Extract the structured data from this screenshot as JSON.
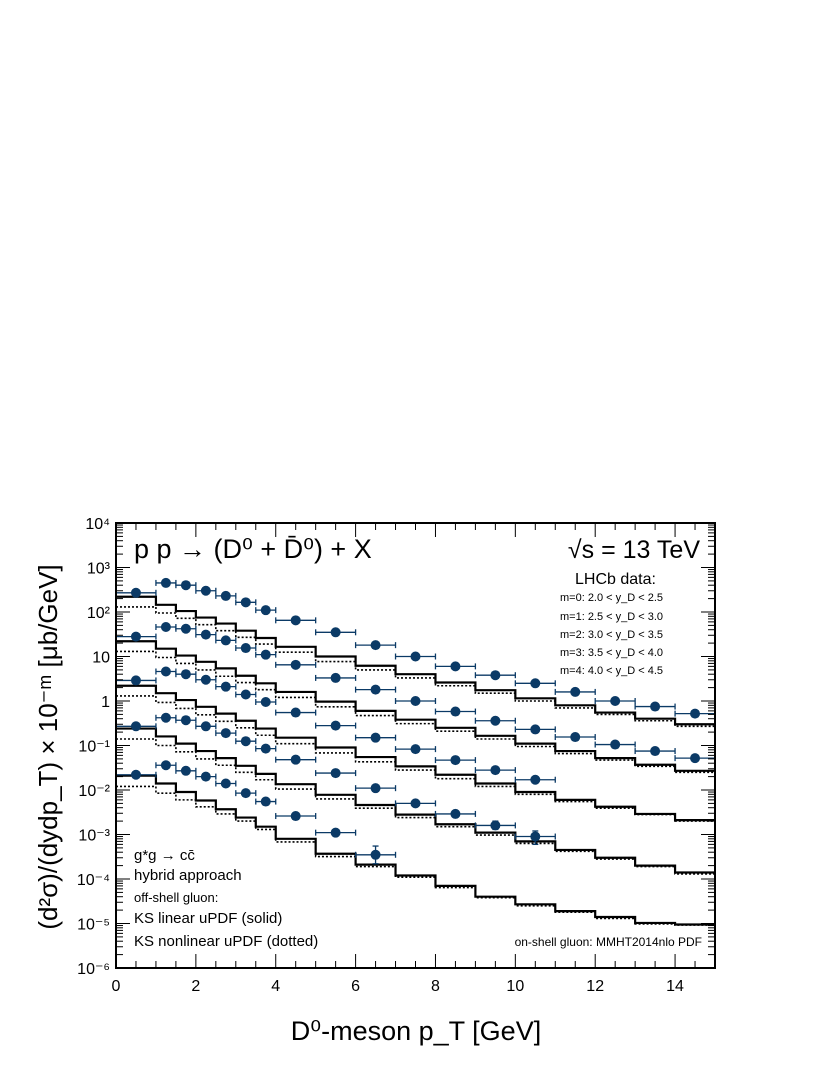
{
  "chart_data": {
    "type": "scatter",
    "title": "p p → (D⁰ + D̄⁰) + X",
    "energy_label": "√s = 13 TeV",
    "xlabel": "D⁰-meson p_T   [GeV]",
    "ylabel": "(d²σ)/(dydp_T) × 10⁻ᵐ  [μb/GeV]",
    "x_tick_labels": [
      "0",
      "2",
      "4",
      "6",
      "8",
      "10",
      "12",
      "14"
    ],
    "y_tick_labels": [
      "10⁻⁶",
      "10⁻⁵",
      "10⁻⁴",
      "10⁻³",
      "10⁻²",
      "10⁻¹",
      "1",
      "10",
      "10²",
      "10³",
      "10⁴"
    ],
    "xlim": [
      0,
      15
    ],
    "ylim": [
      1e-06,
      10000
    ],
    "y_scale": "log",
    "legend_title": "LHCb data:",
    "legend_entries": [
      "m=0:  2.0 < y_D < 2.5",
      "m=1:  2.5 < y_D < 3.0",
      "m=2:  3.0 < y_D < 3.5",
      "m=3:  3.5 < y_D < 4.0",
      "m=4:  4.0 < y_D < 4.5"
    ],
    "annotations": {
      "process": "g*g → cc̄",
      "approach": "hybrid approach",
      "offshell": "off-shell gluon:",
      "linear": "KS linear uPDF (solid)",
      "nonlinear": "KS nonlinear uPDF (dotted)",
      "onshell": "on-shell gluon: MMHT2014nlo PDF"
    },
    "bin_edges": [
      0,
      1,
      1.5,
      2,
      2.5,
      3,
      3.5,
      4,
      5,
      6,
      7,
      8,
      9,
      10,
      11,
      12,
      13,
      14,
      15
    ],
    "series": [
      {
        "name": "m=0:  2.0 < y_D < 2.5",
        "points": [
          {
            "x": 0.5,
            "y": 270
          },
          {
            "x": 1.25,
            "y": 450
          },
          {
            "x": 1.75,
            "y": 400
          },
          {
            "x": 2.25,
            "y": 300
          },
          {
            "x": 2.75,
            "y": 230
          },
          {
            "x": 3.25,
            "y": 165
          },
          {
            "x": 3.75,
            "y": 110
          },
          {
            "x": 4.5,
            "y": 65
          },
          {
            "x": 5.5,
            "y": 35
          },
          {
            "x": 6.5,
            "y": 18
          },
          {
            "x": 7.5,
            "y": 10
          },
          {
            "x": 8.5,
            "y": 6
          },
          {
            "x": 9.5,
            "y": 3.8
          },
          {
            "x": 10.5,
            "y": 2.5
          },
          {
            "x": 11.5,
            "y": 1.6
          },
          {
            "x": 12.5,
            "y": 1.0
          },
          {
            "x": 13.5,
            "y": 0.75
          },
          {
            "x": 14.5,
            "y": 0.52
          }
        ],
        "solid": [
          220,
          145,
          105,
          75,
          55,
          38,
          26,
          16.5,
          10,
          6.2,
          4.0,
          2.6,
          1.75,
          1.15,
          0.8,
          0.55,
          0.4,
          0.3
        ],
        "dotted": [
          130,
          95,
          72,
          52,
          38,
          27,
          19,
          12.5,
          7.7,
          5.0,
          3.3,
          2.2,
          1.5,
          1.0,
          0.7,
          0.5,
          0.36,
          0.27
        ]
      },
      {
        "name": "m=1:  2.5 < y_D < 3.0",
        "points": [
          {
            "x": 0.5,
            "y": 28
          },
          {
            "x": 1.25,
            "y": 46
          },
          {
            "x": 1.75,
            "y": 42
          },
          {
            "x": 2.25,
            "y": 31
          },
          {
            "x": 2.75,
            "y": 23
          },
          {
            "x": 3.25,
            "y": 15.5
          },
          {
            "x": 3.75,
            "y": 11
          },
          {
            "x": 4.5,
            "y": 6.5
          },
          {
            "x": 5.5,
            "y": 3.3
          },
          {
            "x": 6.5,
            "y": 1.8
          },
          {
            "x": 7.5,
            "y": 1.0
          },
          {
            "x": 8.5,
            "y": 0.58
          },
          {
            "x": 9.5,
            "y": 0.36
          },
          {
            "x": 10.5,
            "y": 0.23
          },
          {
            "x": 11.5,
            "y": 0.155
          },
          {
            "x": 12.5,
            "y": 0.105
          },
          {
            "x": 13.5,
            "y": 0.075
          },
          {
            "x": 14.5,
            "y": 0.052
          }
        ],
        "solid": [
          22,
          15,
          10.5,
          7.6,
          5.4,
          3.7,
          2.5,
          1.6,
          0.97,
          0.6,
          0.38,
          0.25,
          0.165,
          0.11,
          0.075,
          0.052,
          0.037,
          0.027
        ],
        "dotted": [
          13,
          9.5,
          7.0,
          5.0,
          3.6,
          2.6,
          1.8,
          1.2,
          0.74,
          0.47,
          0.31,
          0.21,
          0.14,
          0.095,
          0.066,
          0.047,
          0.034,
          0.025
        ]
      },
      {
        "name": "m=2:  3.0 < y_D < 3.5",
        "points": [
          {
            "x": 0.5,
            "y": 2.9
          },
          {
            "x": 1.25,
            "y": 4.6
          },
          {
            "x": 1.75,
            "y": 4.0
          },
          {
            "x": 2.25,
            "y": 3.0
          },
          {
            "x": 2.75,
            "y": 2.1
          },
          {
            "x": 3.25,
            "y": 1.4
          },
          {
            "x": 3.75,
            "y": 0.95
          },
          {
            "x": 4.5,
            "y": 0.55
          },
          {
            "x": 5.5,
            "y": 0.28
          },
          {
            "x": 6.5,
            "y": 0.15
          },
          {
            "x": 7.5,
            "y": 0.083
          },
          {
            "x": 8.5,
            "y": 0.047
          },
          {
            "x": 9.5,
            "y": 0.028
          },
          {
            "x": 10.5,
            "y": 0.017
          }
        ],
        "solid": [
          2.2,
          1.5,
          1.05,
          0.74,
          0.52,
          0.36,
          0.24,
          0.15,
          0.09,
          0.055,
          0.034,
          0.022,
          0.014,
          0.009,
          0.006,
          0.0042,
          0.0029,
          0.0021
        ],
        "dotted": [
          1.3,
          0.93,
          0.68,
          0.49,
          0.35,
          0.25,
          0.17,
          0.11,
          0.068,
          0.043,
          0.028,
          0.018,
          0.012,
          0.008,
          0.0055,
          0.0039,
          0.0028,
          0.002
        ]
      },
      {
        "name": "m=3:  3.5 < y_D < 4.0",
        "points": [
          {
            "x": 0.5,
            "y": 0.27
          },
          {
            "x": 1.25,
            "y": 0.42
          },
          {
            "x": 1.75,
            "y": 0.37
          },
          {
            "x": 2.25,
            "y": 0.27
          },
          {
            "x": 2.75,
            "y": 0.19
          },
          {
            "x": 3.25,
            "y": 0.125
          },
          {
            "x": 3.75,
            "y": 0.085
          },
          {
            "x": 4.5,
            "y": 0.048
          },
          {
            "x": 5.5,
            "y": 0.024
          },
          {
            "x": 6.5,
            "y": 0.011
          },
          {
            "x": 7.5,
            "y": 0.005
          },
          {
            "x": 8.5,
            "y": 0.0029
          },
          {
            "x": 9.5,
            "y": 0.0016
          },
          {
            "x": 10.5,
            "y": 0.0009
          }
        ],
        "solid": [
          0.24,
          0.16,
          0.11,
          0.075,
          0.052,
          0.035,
          0.023,
          0.0135,
          0.0078,
          0.0046,
          0.0028,
          0.0017,
          0.0011,
          0.0007,
          0.00045,
          0.0003,
          0.0002,
          0.00014
        ],
        "dotted": [
          0.14,
          0.1,
          0.072,
          0.05,
          0.036,
          0.025,
          0.017,
          0.0105,
          0.0063,
          0.0039,
          0.0024,
          0.0015,
          0.00097,
          0.00063,
          0.00042,
          0.00028,
          0.00019,
          0.00013
        ]
      },
      {
        "name": "m=4:  4.0 < y_D < 4.5",
        "points": [
          {
            "x": 0.5,
            "y": 0.022
          },
          {
            "x": 1.25,
            "y": 0.036
          },
          {
            "x": 1.75,
            "y": 0.027
          },
          {
            "x": 2.25,
            "y": 0.02
          },
          {
            "x": 2.75,
            "y": 0.014
          },
          {
            "x": 3.25,
            "y": 0.0085
          },
          {
            "x": 3.75,
            "y": 0.0055
          },
          {
            "x": 4.5,
            "y": 0.0026
          },
          {
            "x": 5.5,
            "y": 0.0011
          },
          {
            "x": 6.5,
            "y": 0.00035
          }
        ],
        "solid": [
          0.021,
          0.014,
          0.009,
          0.0058,
          0.0037,
          0.0024,
          0.0015,
          0.0008,
          0.00037,
          0.00021,
          0.00012,
          7e-05,
          4e-05,
          2.7e-05,
          1.9e-05,
          1.4e-05,
          1.03e-05,
          9.5e-06
        ],
        "dotted": [
          0.012,
          0.0085,
          0.006,
          0.0042,
          0.0029,
          0.002,
          0.0013,
          0.00068,
          0.00032,
          0.00019,
          0.00011,
          6.4e-05,
          3.8e-05,
          2.5e-05,
          1.8e-05,
          1.3e-05,
          9.8e-06,
          9.2e-06
        ]
      }
    ],
    "colors": {
      "marker": "#0b3a66",
      "axis": "#000000"
    }
  }
}
